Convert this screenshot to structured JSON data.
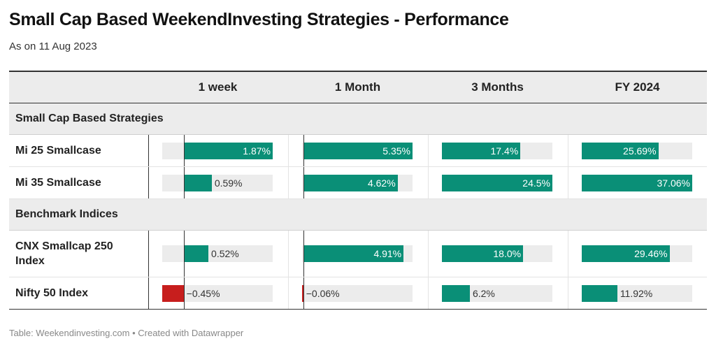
{
  "title": "Small Cap Based WeekendInvesting Strategies - Performance",
  "subtitle": "As on 11 Aug 2023",
  "footer": "Table: Weekendinvesting.com • Created with Datawrapper",
  "colors": {
    "positive": "#0a8f77",
    "negative": "#c71e1d",
    "track": "#ececec"
  },
  "chart_data": {
    "type": "table",
    "columns": [
      "1 week",
      "1 Month",
      "3 Months",
      "FY 2024"
    ],
    "groups": [
      {
        "name": "Small Cap Based Strategies",
        "rows": [
          {
            "label": "Mi 25 Smallcase",
            "values": [
              1.87,
              5.35,
              17.4,
              25.69
            ],
            "display": [
              "1.87%",
              "5.35%",
              "17.4%",
              "25.69%"
            ]
          },
          {
            "label": "Mi 35 Smallcase",
            "values": [
              0.59,
              4.62,
              24.5,
              37.06
            ],
            "display": [
              "0.59%",
              "4.62%",
              "24.5%",
              "37.06%"
            ]
          }
        ]
      },
      {
        "name": "Benchmark Indices",
        "rows": [
          {
            "label": "CNX Smallcap 250 Index",
            "values": [
              0.52,
              4.91,
              18.0,
              29.46
            ],
            "display": [
              "0.52%",
              "4.91%",
              "18.0%",
              "29.46%"
            ]
          },
          {
            "label": "Nifty 50 Index",
            "values": [
              -0.45,
              -0.06,
              6.2,
              11.92
            ],
            "display": [
              "−0.45%",
              "−0.06%",
              "6.2%",
              "11.92%"
            ]
          }
        ]
      }
    ],
    "column_ranges": [
      [
        -0.45,
        1.87
      ],
      [
        -0.06,
        5.35
      ],
      [
        0,
        24.5
      ],
      [
        0,
        37.06
      ]
    ]
  }
}
